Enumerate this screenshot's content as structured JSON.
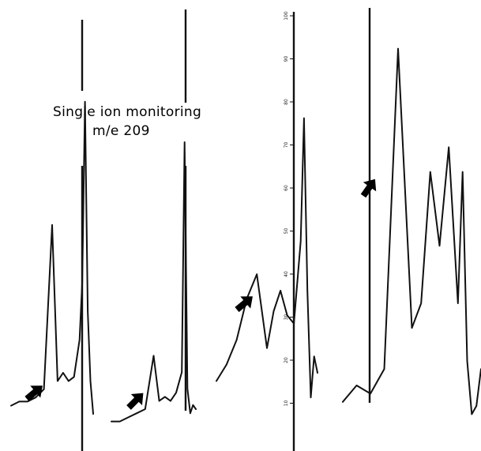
{
  "header": {
    "line1": "Single ion monitoring",
    "line2": "m/e 209"
  },
  "chart_data": {
    "type": "line",
    "title": "Single ion monitoring m/e 209",
    "xlabel": "",
    "ylabel": "",
    "scale": {
      "ticks": [
        "10",
        "20",
        "30",
        "40",
        "50",
        "60",
        "70",
        "80",
        "90",
        "100"
      ],
      "ylim": [
        0,
        100
      ]
    },
    "series": [
      {
        "x": [
          0,
          3,
          6,
          9,
          12,
          15,
          17,
          19,
          21,
          23,
          25,
          26,
          27,
          28,
          29,
          30
        ],
        "values": [
          2,
          3,
          3,
          4,
          6,
          46,
          8,
          10,
          8,
          9,
          18,
          32,
          76,
          25,
          8,
          0
        ]
      },
      {
        "x": [
          0,
          3,
          6,
          9,
          12,
          15,
          17,
          19,
          21,
          23,
          25,
          26,
          27,
          28,
          29,
          30
        ],
        "values": [
          2,
          2,
          3,
          4,
          5,
          18,
          7,
          8,
          7,
          9,
          14,
          70,
          10,
          4,
          6,
          5
        ]
      },
      {
        "x": [
          0,
          3,
          6,
          9,
          12,
          15,
          17,
          19,
          21,
          23,
          25,
          26,
          27,
          28,
          29,
          30
        ],
        "values": [
          8,
          12,
          18,
          28,
          34,
          16,
          25,
          30,
          24,
          22,
          42,
          72,
          30,
          4,
          14,
          10
        ]
      },
      {
        "x": [
          0,
          3,
          6,
          9,
          12,
          15,
          17,
          19,
          21,
          23,
          25,
          26,
          27,
          28,
          29,
          30
        ],
        "values": [
          6,
          10,
          8,
          14,
          92,
          24,
          30,
          62,
          44,
          68,
          30,
          62,
          16,
          3,
          5,
          14
        ]
      }
    ],
    "grid": false,
    "legend": "none"
  },
  "colors": {
    "ink": "#111111",
    "paper": "#ffffff"
  },
  "icons": {
    "marker": "arrow-marker-icon"
  }
}
